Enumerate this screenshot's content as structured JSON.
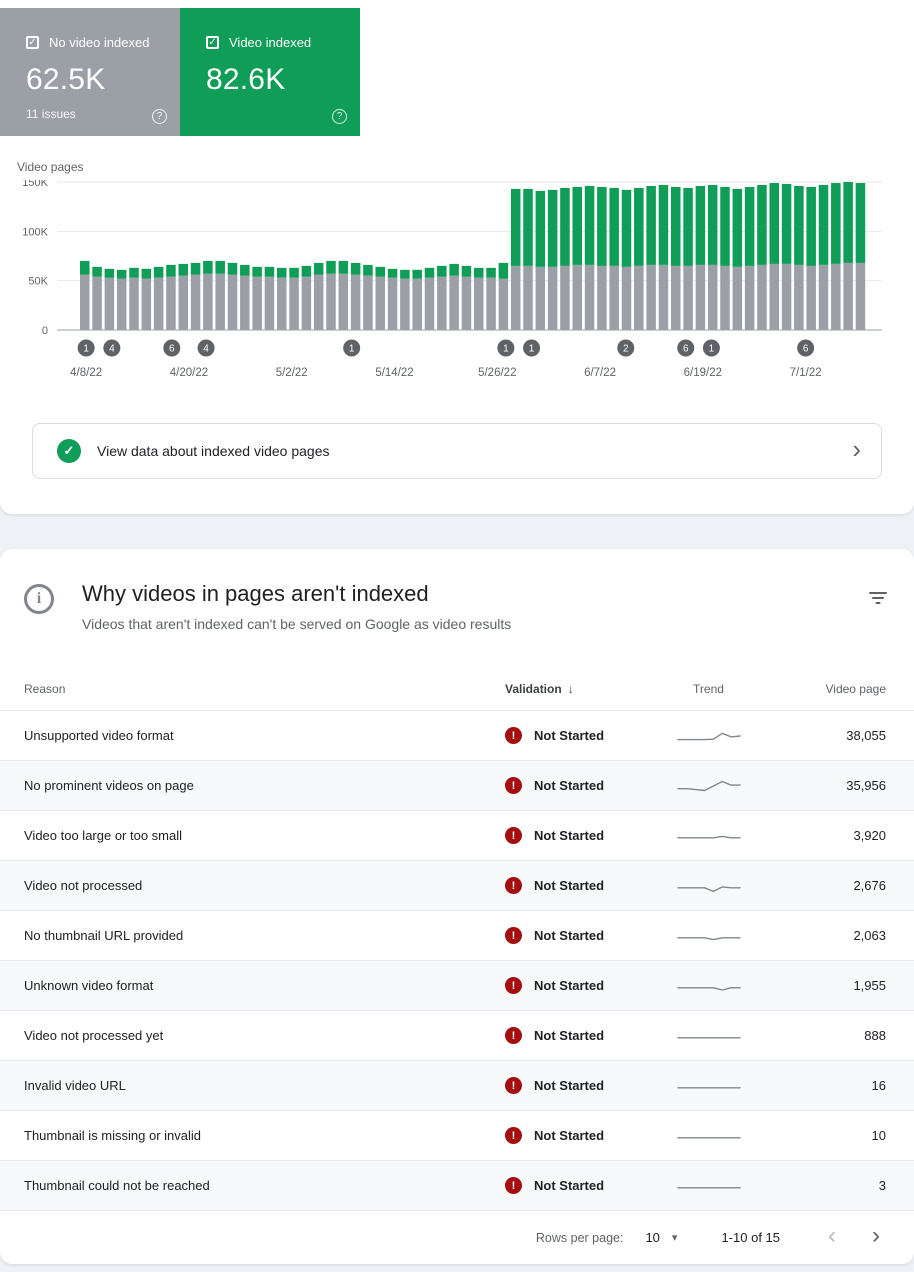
{
  "colors": {
    "indexed_green": "#0f9d58",
    "not_indexed_gray": "#9aa0a6",
    "error_red": "#a50e0e",
    "trend_line": "#80868b",
    "marker_gray": "#5f6368"
  },
  "icons": {
    "check": "✓",
    "help": "?",
    "info": "i",
    "sort_desc": "↓",
    "chevron_right": "›",
    "chevron_left": "‹",
    "dropdown": "▾",
    "error": "!"
  },
  "summary": {
    "not_indexed": {
      "label": "No video indexed",
      "value": "62.5K",
      "issues": "11 issues",
      "checked": true
    },
    "indexed": {
      "label": "Video indexed",
      "value": "82.6K",
      "checked": true
    }
  },
  "view_data_row": {
    "label": "View data about indexed video pages"
  },
  "issues": {
    "title": "Why videos in pages aren't indexed",
    "subtitle": "Videos that aren't indexed can't be served on Google as video results",
    "table": {
      "headers": {
        "reason": "Reason",
        "validation": "Validation",
        "trend": "Trend",
        "video_page": "Video page"
      },
      "sort": {
        "column": "Validation",
        "direction": "desc"
      },
      "rows": [
        {
          "reason": "Unsupported video format",
          "validation": "Not Started",
          "video_page": "38,055",
          "trend": [
            7,
            7,
            7,
            7,
            6.8,
            3.5,
            5.5,
            5
          ]
        },
        {
          "reason": "No prominent videos on page",
          "validation": "Not Started",
          "video_page": "35,956",
          "trend": [
            6.5,
            6.5,
            7,
            7.5,
            5,
            2.5,
            4.5,
            4.5
          ]
        },
        {
          "reason": "Video too large or too small",
          "validation": "Not Started",
          "video_page": "3,920",
          "trend": [
            6,
            6,
            6,
            6,
            6,
            5.2,
            6,
            6
          ]
        },
        {
          "reason": "Video not processed",
          "validation": "Not Started",
          "video_page": "2,676",
          "trend": [
            6,
            6,
            6,
            6,
            8,
            5.5,
            6,
            6
          ]
        },
        {
          "reason": "No thumbnail URL provided",
          "validation": "Not Started",
          "video_page": "2,063",
          "trend": [
            6,
            6,
            6,
            6,
            7,
            6,
            6,
            6
          ]
        },
        {
          "reason": "Unknown video format",
          "validation": "Not Started",
          "video_page": "1,955",
          "trend": [
            6,
            6,
            6,
            6,
            6,
            7.2,
            6,
            6
          ]
        },
        {
          "reason": "Video not processed yet",
          "validation": "Not Started",
          "video_page": "888",
          "trend": [
            6,
            6,
            6,
            6,
            6,
            6,
            6,
            6
          ]
        },
        {
          "reason": "Invalid video URL",
          "validation": "Not Started",
          "video_page": "16",
          "trend": [
            6,
            6,
            6,
            6,
            6,
            6,
            6,
            6
          ]
        },
        {
          "reason": "Thumbnail is missing or invalid",
          "validation": "Not Started",
          "video_page": "10",
          "trend": [
            6,
            6,
            6,
            6,
            6,
            6,
            6,
            6
          ]
        },
        {
          "reason": "Thumbnail could not be reached",
          "validation": "Not Started",
          "video_page": "3",
          "trend": [
            6,
            6,
            6,
            6,
            6,
            6,
            6,
            6
          ]
        }
      ]
    },
    "pagination": {
      "rows_per_page_label": "Rows per page:",
      "rows_per_page": "10",
      "range_label": "1-10 of 15"
    }
  },
  "chart_data": {
    "type": "bar",
    "stacked": true,
    "title": "Video pages",
    "unit": "K",
    "days_total": 92,
    "ylim_k": [
      0,
      150
    ],
    "grid": true,
    "y_ticks": [
      {
        "value": 0,
        "label": "0"
      },
      {
        "value": 50,
        "label": "50K"
      },
      {
        "value": 100,
        "label": "100K"
      },
      {
        "value": 150,
        "label": "150K"
      }
    ],
    "x_ticks": [
      {
        "day": 0,
        "label": "4/8/22"
      },
      {
        "day": 12,
        "label": "4/20/22"
      },
      {
        "day": 24,
        "label": "5/2/22"
      },
      {
        "day": 36,
        "label": "5/14/22"
      },
      {
        "day": 48,
        "label": "5/26/22"
      },
      {
        "day": 60,
        "label": "6/7/22"
      },
      {
        "day": 72,
        "label": "6/19/22"
      },
      {
        "day": 84,
        "label": "7/1/22"
      }
    ],
    "markers": [
      {
        "day": 0,
        "label": "1"
      },
      {
        "day": 3,
        "label": "4"
      },
      {
        "day": 10,
        "label": "6"
      },
      {
        "day": 14,
        "label": "4"
      },
      {
        "day": 31,
        "label": "1"
      },
      {
        "day": 49,
        "label": "1"
      },
      {
        "day": 52,
        "label": "1"
      },
      {
        "day": 63,
        "label": "2"
      },
      {
        "day": 70,
        "label": "6"
      },
      {
        "day": 73,
        "label": "1"
      },
      {
        "day": 84,
        "label": "6"
      }
    ],
    "series": [
      {
        "name": "No video indexed",
        "color": "#9aa0a6",
        "values_k": [
          56,
          54,
          53,
          52,
          53,
          52,
          53,
          54,
          55,
          56,
          57,
          57,
          56,
          55,
          54,
          54,
          53,
          53,
          54,
          56,
          57,
          57,
          56,
          55,
          54,
          53,
          52,
          52,
          53,
          54,
          55,
          54,
          53,
          53,
          52,
          65,
          65,
          64,
          64,
          65,
          66,
          66,
          65,
          65,
          64,
          65,
          66,
          66,
          65,
          65,
          66,
          66,
          65,
          64,
          65,
          66,
          67,
          67,
          66,
          65,
          66,
          67,
          68,
          68
        ]
      },
      {
        "name": "Video indexed",
        "color": "#0f9d58",
        "values_k": [
          14,
          10,
          9,
          9,
          10,
          10,
          11,
          12,
          12,
          12,
          13,
          13,
          12,
          11,
          10,
          10,
          10,
          10,
          11,
          12,
          13,
          13,
          12,
          11,
          10,
          9,
          9,
          9,
          10,
          11,
          12,
          11,
          10,
          10,
          16,
          78,
          78,
          77,
          78,
          79,
          79,
          80,
          80,
          79,
          78,
          79,
          80,
          81,
          80,
          79,
          80,
          81,
          80,
          79,
          80,
          81,
          82,
          81,
          80,
          80,
          81,
          82,
          82,
          81
        ]
      }
    ]
  }
}
